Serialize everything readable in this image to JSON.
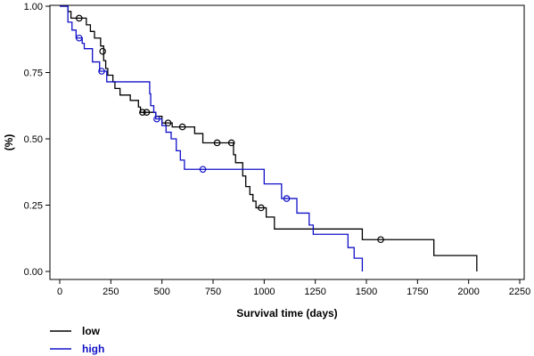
{
  "chart_data": {
    "type": "line",
    "subtype": "kaplan-meier",
    "title": "",
    "xlabel": "Survival time (days)",
    "ylabel": "(%)",
    "xlim": [
      0,
      2250
    ],
    "ylim": [
      0,
      1
    ],
    "x_ticks": [
      0,
      250,
      500,
      750,
      1000,
      1250,
      1500,
      1750,
      2000,
      2250
    ],
    "y_ticks": [
      0,
      0.25,
      0.5,
      0.75,
      1
    ],
    "y_tick_labels": [
      "0.00",
      "0.25",
      "0.50",
      "0.75",
      "1.00"
    ],
    "grid": false,
    "legend_position": "bottom-left",
    "series": [
      {
        "name": "low",
        "color": "#000000",
        "steps": [
          {
            "x": 0,
            "y": 1.0
          },
          {
            "x": 40,
            "y": 0.98
          },
          {
            "x": 55,
            "y": 0.955
          },
          {
            "x": 130,
            "y": 0.93
          },
          {
            "x": 150,
            "y": 0.905
          },
          {
            "x": 170,
            "y": 0.88
          },
          {
            "x": 200,
            "y": 0.85
          },
          {
            "x": 215,
            "y": 0.795
          },
          {
            "x": 225,
            "y": 0.765
          },
          {
            "x": 235,
            "y": 0.74
          },
          {
            "x": 260,
            "y": 0.715
          },
          {
            "x": 270,
            "y": 0.69
          },
          {
            "x": 295,
            "y": 0.665
          },
          {
            "x": 345,
            "y": 0.645
          },
          {
            "x": 385,
            "y": 0.62
          },
          {
            "x": 395,
            "y": 0.6
          },
          {
            "x": 470,
            "y": 0.585
          },
          {
            "x": 500,
            "y": 0.56
          },
          {
            "x": 550,
            "y": 0.545
          },
          {
            "x": 660,
            "y": 0.52
          },
          {
            "x": 700,
            "y": 0.485
          },
          {
            "x": 850,
            "y": 0.44
          },
          {
            "x": 860,
            "y": 0.41
          },
          {
            "x": 895,
            "y": 0.36
          },
          {
            "x": 910,
            "y": 0.32
          },
          {
            "x": 930,
            "y": 0.29
          },
          {
            "x": 945,
            "y": 0.265
          },
          {
            "x": 960,
            "y": 0.24
          },
          {
            "x": 1010,
            "y": 0.205
          },
          {
            "x": 1050,
            "y": 0.16
          },
          {
            "x": 1480,
            "y": 0.12
          },
          {
            "x": 1830,
            "y": 0.06
          },
          {
            "x": 2040,
            "y": 0.0
          }
        ],
        "end_x": 2040,
        "censored": [
          {
            "x": 95,
            "y": 0.955
          },
          {
            "x": 210,
            "y": 0.83
          },
          {
            "x": 405,
            "y": 0.6
          },
          {
            "x": 425,
            "y": 0.6
          },
          {
            "x": 530,
            "y": 0.56
          },
          {
            "x": 600,
            "y": 0.545
          },
          {
            "x": 770,
            "y": 0.485
          },
          {
            "x": 840,
            "y": 0.485
          },
          {
            "x": 985,
            "y": 0.24
          },
          {
            "x": 1570,
            "y": 0.12
          }
        ]
      },
      {
        "name": "high",
        "color": "#1010c8",
        "steps": [
          {
            "x": 0,
            "y": 1.0
          },
          {
            "x": 40,
            "y": 0.94
          },
          {
            "x": 60,
            "y": 0.91
          },
          {
            "x": 80,
            "y": 0.88
          },
          {
            "x": 110,
            "y": 0.86
          },
          {
            "x": 120,
            "y": 0.84
          },
          {
            "x": 160,
            "y": 0.79
          },
          {
            "x": 195,
            "y": 0.755
          },
          {
            "x": 230,
            "y": 0.715
          },
          {
            "x": 440,
            "y": 0.67
          },
          {
            "x": 445,
            "y": 0.625
          },
          {
            "x": 460,
            "y": 0.6
          },
          {
            "x": 470,
            "y": 0.575
          },
          {
            "x": 500,
            "y": 0.55
          },
          {
            "x": 520,
            "y": 0.525
          },
          {
            "x": 545,
            "y": 0.5
          },
          {
            "x": 570,
            "y": 0.455
          },
          {
            "x": 590,
            "y": 0.42
          },
          {
            "x": 610,
            "y": 0.385
          },
          {
            "x": 1000,
            "y": 0.33
          },
          {
            "x": 1085,
            "y": 0.275
          },
          {
            "x": 1160,
            "y": 0.22
          },
          {
            "x": 1220,
            "y": 0.175
          },
          {
            "x": 1240,
            "y": 0.14
          },
          {
            "x": 1410,
            "y": 0.09
          },
          {
            "x": 1440,
            "y": 0.05
          },
          {
            "x": 1480,
            "y": 0.0
          }
        ],
        "end_x": 1480,
        "censored": [
          {
            "x": 95,
            "y": 0.88
          },
          {
            "x": 205,
            "y": 0.755
          },
          {
            "x": 475,
            "y": 0.575
          },
          {
            "x": 700,
            "y": 0.385
          },
          {
            "x": 1110,
            "y": 0.275
          }
        ]
      }
    ]
  }
}
